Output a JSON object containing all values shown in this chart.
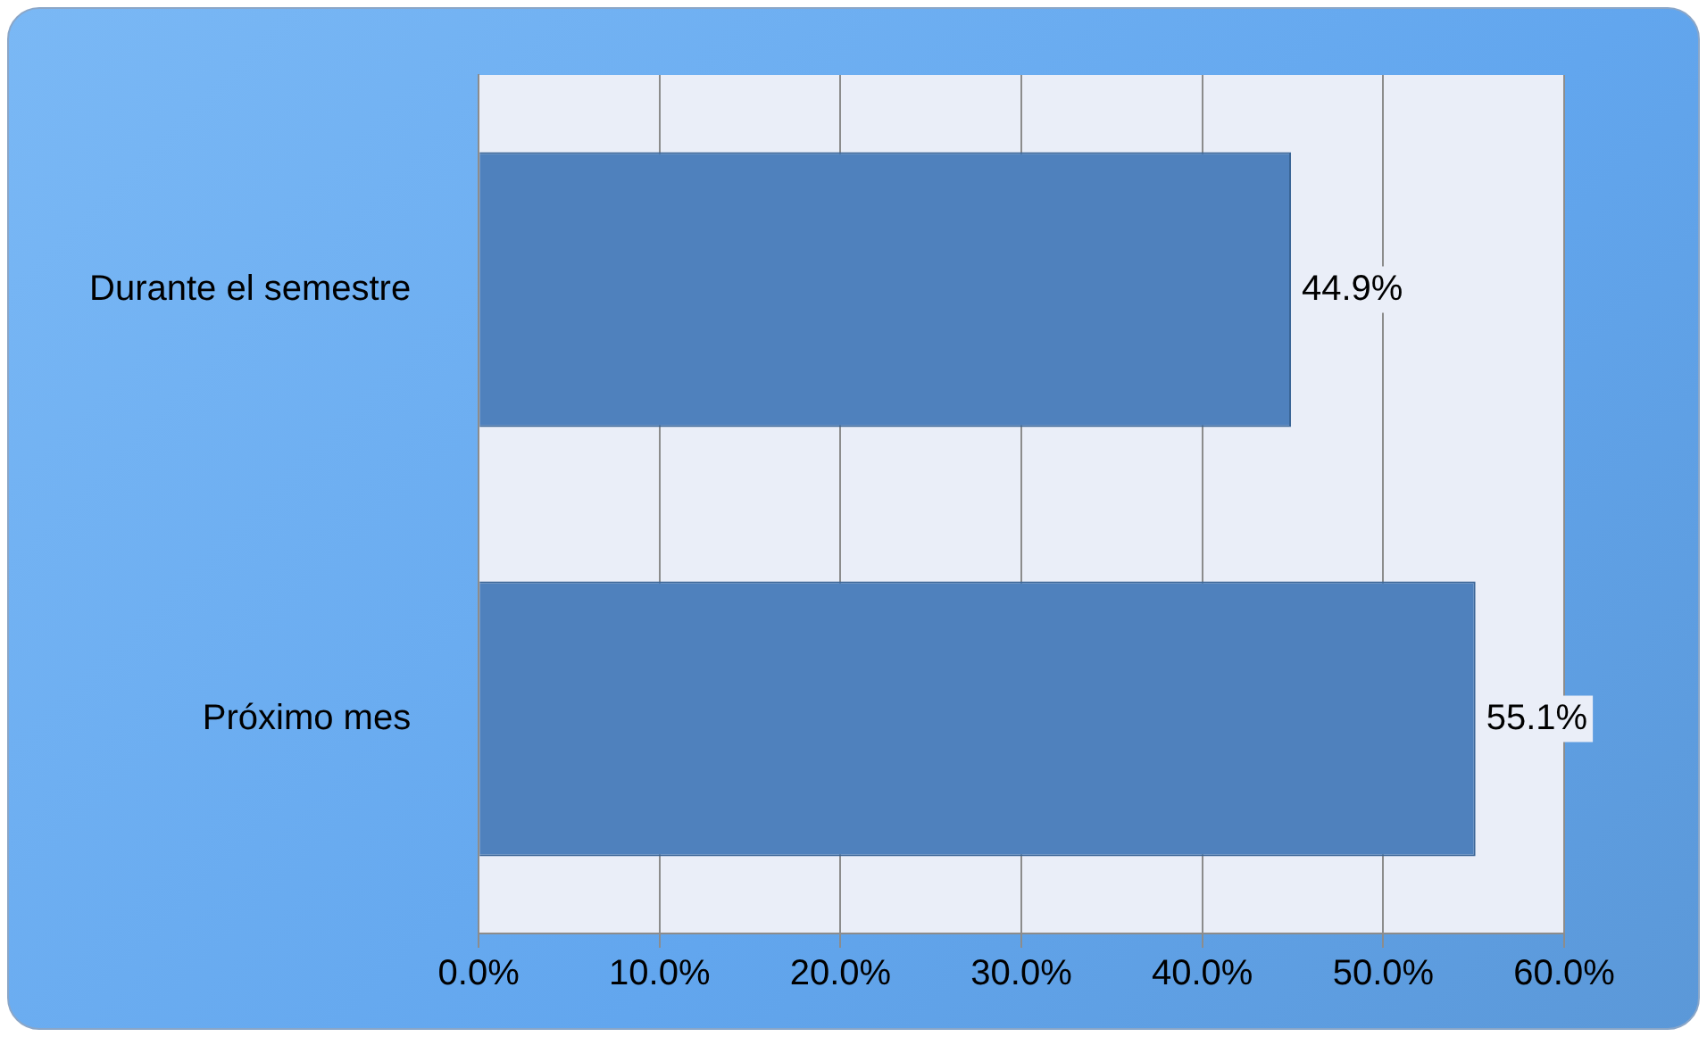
{
  "chart_data": {
    "type": "bar",
    "orientation": "horizontal",
    "categories": [
      "Durante el semestre",
      "Próximo mes"
    ],
    "values": [
      44.9,
      55.1
    ],
    "color": "#4f81bd",
    "value_labels": [
      "44.9%",
      "55.1%"
    ],
    "xlim": [
      0,
      60
    ],
    "xticks": [
      {
        "value": 0,
        "label": "0.0%"
      },
      {
        "value": 10,
        "label": "10.0%"
      },
      {
        "value": 20,
        "label": "20.0%"
      },
      {
        "value": 30,
        "label": "30.0%"
      },
      {
        "value": 40,
        "label": "40.0%"
      },
      {
        "value": 50,
        "label": "50.0%"
      },
      {
        "value": 60,
        "label": "60.0%"
      }
    ],
    "grid": "x"
  }
}
